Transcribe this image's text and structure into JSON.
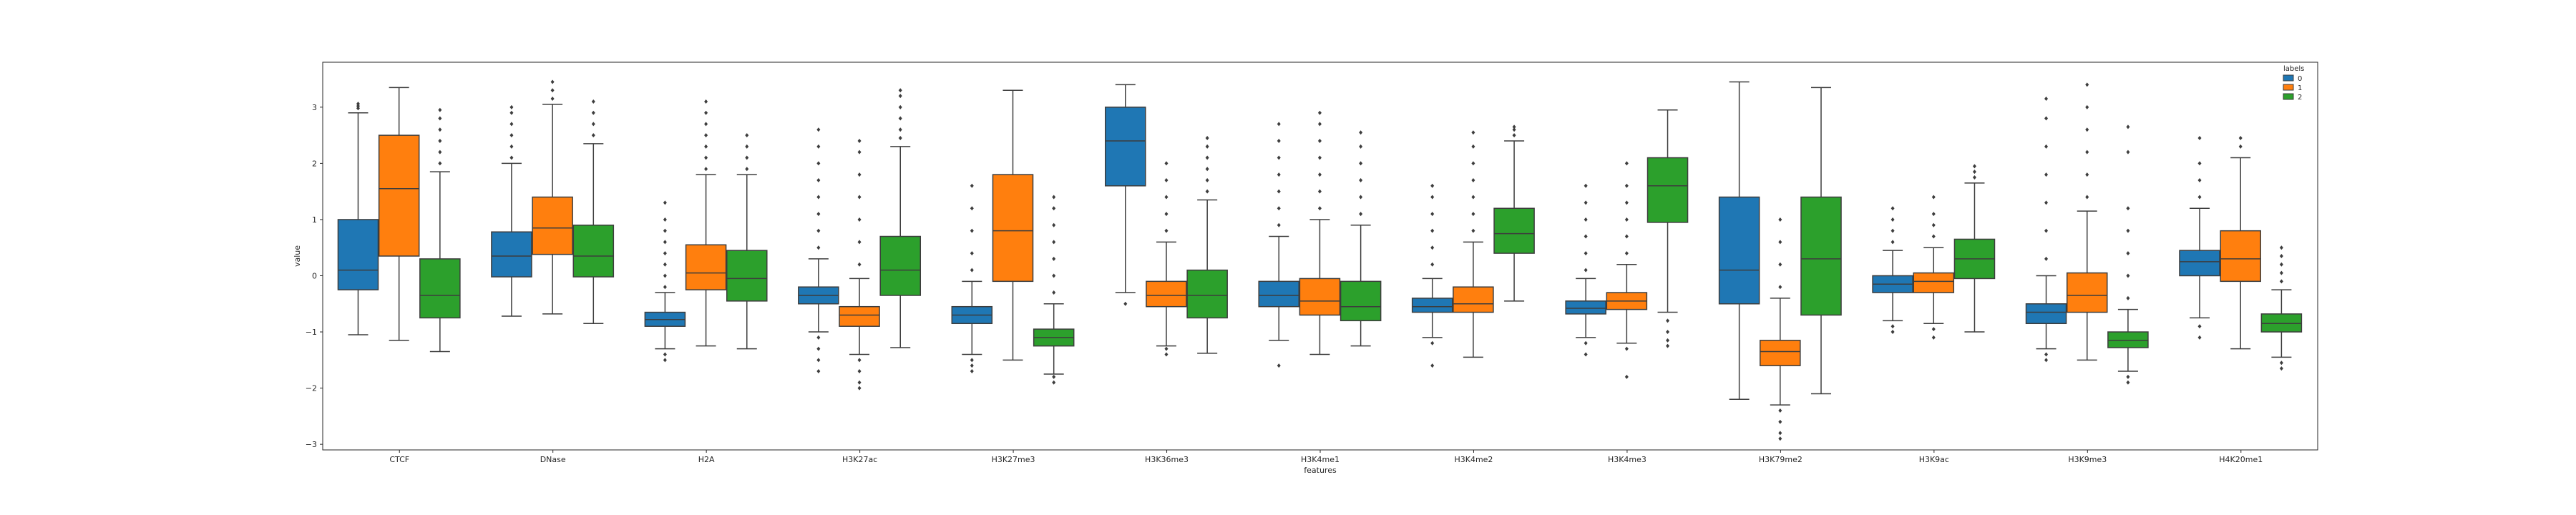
{
  "chart_data": {
    "type": "boxplot",
    "title": "",
    "xlabel": "features",
    "ylabel": "value",
    "ylim": [
      -3.1,
      3.8
    ],
    "yticks": [
      -3,
      -2,
      -1,
      0,
      1,
      2,
      3
    ],
    "grid": false,
    "legend": {
      "title": "labels",
      "position": "top-right",
      "entries": [
        "0",
        "1",
        "2"
      ]
    },
    "categories": [
      "CTCF",
      "DNase",
      "H2A",
      "H3K27ac",
      "H3K27me3",
      "H3K36me3",
      "H3K4me1",
      "H3K4me2",
      "H3K4me3",
      "H3K79me2",
      "H3K9ac",
      "H3K9me3",
      "H4K20me1"
    ],
    "series": [
      {
        "name": "0",
        "color": "#1f77b4",
        "boxes": [
          {
            "whislo": -1.05,
            "q1": -0.25,
            "med": 0.1,
            "q3": 1.0,
            "whishi": 2.9,
            "fliers_low": [],
            "fliers_high": [
              2.98,
              3.02,
              3.06
            ]
          },
          {
            "whislo": -0.72,
            "q1": -0.02,
            "med": 0.35,
            "q3": 0.78,
            "whishi": 2.0,
            "fliers_low": [],
            "fliers_high": [
              2.1,
              2.3,
              2.5,
              2.7,
              2.9,
              3.0
            ]
          },
          {
            "whislo": -1.3,
            "q1": -0.9,
            "med": -0.78,
            "q3": -0.65,
            "whishi": -0.3,
            "fliers_low": [
              -1.4,
              -1.5
            ],
            "fliers_high": [
              -0.2,
              0.0,
              0.2,
              0.4,
              0.6,
              0.8,
              1.0,
              1.3
            ]
          },
          {
            "whislo": -1.0,
            "q1": -0.5,
            "med": -0.35,
            "q3": -0.2,
            "whishi": 0.3,
            "fliers_low": [
              -1.1,
              -1.3,
              -1.5,
              -1.7
            ],
            "fliers_high": [
              0.5,
              0.8,
              1.1,
              1.4,
              1.7,
              2.0,
              2.3,
              2.6
            ]
          },
          {
            "whislo": -1.4,
            "q1": -0.85,
            "med": -0.7,
            "q3": -0.55,
            "whishi": -0.1,
            "fliers_low": [
              -1.5,
              -1.6,
              -1.7
            ],
            "fliers_high": [
              0.1,
              0.4,
              0.8,
              1.2,
              1.6
            ]
          },
          {
            "whislo": -0.3,
            "q1": 1.6,
            "med": 2.4,
            "q3": 3.0,
            "whishi": 3.4,
            "fliers_low": [
              -0.5
            ],
            "fliers_high": []
          },
          {
            "whislo": -1.15,
            "q1": -0.55,
            "med": -0.35,
            "q3": -0.1,
            "whishi": 0.7,
            "fliers_low": [
              -1.6
            ],
            "fliers_high": [
              0.9,
              1.2,
              1.5,
              1.8,
              2.1,
              2.4,
              2.7
            ]
          },
          {
            "whislo": -1.1,
            "q1": -0.65,
            "med": -0.55,
            "q3": -0.4,
            "whishi": -0.05,
            "fliers_low": [
              -1.2,
              -1.6
            ],
            "fliers_high": [
              0.2,
              0.5,
              0.8,
              1.1,
              1.4,
              1.6
            ]
          },
          {
            "whislo": -1.1,
            "q1": -0.68,
            "med": -0.58,
            "q3": -0.45,
            "whishi": -0.05,
            "fliers_low": [
              -1.2,
              -1.4
            ],
            "fliers_high": [
              0.1,
              0.4,
              0.7,
              1.0,
              1.3,
              1.6
            ]
          },
          {
            "whislo": -2.2,
            "q1": -0.5,
            "med": 0.1,
            "q3": 1.4,
            "whishi": 3.45,
            "fliers_low": [],
            "fliers_high": []
          },
          {
            "whislo": -0.8,
            "q1": -0.3,
            "med": -0.15,
            "q3": 0.0,
            "whishi": 0.45,
            "fliers_low": [
              -0.9,
              -1.0
            ],
            "fliers_high": [
              0.6,
              0.8,
              1.0,
              1.2
            ]
          },
          {
            "whislo": -1.3,
            "q1": -0.85,
            "med": -0.65,
            "q3": -0.5,
            "whishi": 0.0,
            "fliers_low": [
              -1.4,
              -1.5
            ],
            "fliers_high": [
              0.3,
              0.8,
              1.3,
              1.8,
              2.3,
              2.8,
              3.15
            ]
          },
          {
            "whislo": -0.75,
            "q1": 0.0,
            "med": 0.25,
            "q3": 0.45,
            "whishi": 1.2,
            "fliers_low": [
              -0.9,
              -1.1
            ],
            "fliers_high": [
              1.4,
              1.7,
              2.0,
              2.45
            ]
          }
        ]
      },
      {
        "name": "1",
        "color": "#ff7f0e",
        "boxes": [
          {
            "whislo": -1.15,
            "q1": 0.35,
            "med": 1.55,
            "q3": 2.5,
            "whishi": 3.35,
            "fliers_low": [],
            "fliers_high": []
          },
          {
            "whislo": -0.68,
            "q1": 0.38,
            "med": 0.85,
            "q3": 1.4,
            "whishi": 3.05,
            "fliers_low": [],
            "fliers_high": [
              3.15,
              3.3,
              3.45
            ]
          },
          {
            "whislo": -1.25,
            "q1": -0.25,
            "med": 0.05,
            "q3": 0.55,
            "whishi": 1.8,
            "fliers_low": [],
            "fliers_high": [
              1.9,
              2.1,
              2.3,
              2.5,
              2.7,
              2.9,
              3.1
            ]
          },
          {
            "whislo": -1.4,
            "q1": -0.9,
            "med": -0.7,
            "q3": -0.55,
            "whishi": -0.05,
            "fliers_low": [
              -1.5,
              -1.7,
              -1.9,
              -2.0
            ],
            "fliers_high": [
              0.2,
              0.6,
              1.0,
              1.4,
              1.8,
              2.2,
              2.4
            ]
          },
          {
            "whislo": -1.5,
            "q1": -0.1,
            "med": 0.8,
            "q3": 1.8,
            "whishi": 3.3,
            "fliers_low": [],
            "fliers_high": []
          },
          {
            "whislo": -1.25,
            "q1": -0.55,
            "med": -0.35,
            "q3": -0.1,
            "whishi": 0.6,
            "fliers_low": [
              -1.3,
              -1.4
            ],
            "fliers_high": [
              0.8,
              1.1,
              1.4,
              1.7,
              2.0
            ]
          },
          {
            "whislo": -1.4,
            "q1": -0.7,
            "med": -0.45,
            "q3": -0.05,
            "whishi": 1.0,
            "fliers_low": [],
            "fliers_high": [
              1.2,
              1.5,
              1.8,
              2.1,
              2.4,
              2.7,
              2.9
            ]
          },
          {
            "whislo": -1.45,
            "q1": -0.65,
            "med": -0.5,
            "q3": -0.2,
            "whishi": 0.6,
            "fliers_low": [],
            "fliers_high": [
              0.8,
              1.1,
              1.4,
              1.7,
              2.0,
              2.3,
              2.55
            ]
          },
          {
            "whislo": -1.2,
            "q1": -0.6,
            "med": -0.45,
            "q3": -0.3,
            "whishi": 0.2,
            "fliers_low": [
              -1.3,
              -1.8
            ],
            "fliers_high": [
              0.4,
              0.7,
              1.0,
              1.3,
              1.6,
              2.0
            ]
          },
          {
            "whislo": -2.3,
            "q1": -1.6,
            "med": -1.35,
            "q3": -1.15,
            "whishi": -0.4,
            "fliers_low": [
              -2.4,
              -2.6,
              -2.8,
              -2.9
            ],
            "fliers_high": [
              -0.2,
              0.2,
              0.6,
              1.0
            ]
          },
          {
            "whislo": -0.85,
            "q1": -0.3,
            "med": -0.1,
            "q3": 0.05,
            "whishi": 0.5,
            "fliers_low": [
              -0.95,
              -1.1
            ],
            "fliers_high": [
              0.7,
              0.9,
              1.1,
              1.4
            ]
          },
          {
            "whislo": -1.5,
            "q1": -0.65,
            "med": -0.35,
            "q3": 0.05,
            "whishi": 1.15,
            "fliers_low": [],
            "fliers_high": [
              1.4,
              1.8,
              2.2,
              2.6,
              3.0,
              3.4
            ]
          },
          {
            "whislo": -1.3,
            "q1": -0.1,
            "med": 0.3,
            "q3": 0.8,
            "whishi": 2.1,
            "fliers_low": [],
            "fliers_high": [
              2.3,
              2.45
            ]
          }
        ]
      },
      {
        "name": "2",
        "color": "#2ca02c",
        "boxes": [
          {
            "whislo": -1.35,
            "q1": -0.75,
            "med": -0.35,
            "q3": 0.3,
            "whishi": 1.85,
            "fliers_low": [],
            "fliers_high": [
              2.0,
              2.2,
              2.4,
              2.6,
              2.8,
              2.95
            ]
          },
          {
            "whislo": -0.85,
            "q1": -0.02,
            "med": 0.35,
            "q3": 0.9,
            "whishi": 2.35,
            "fliers_low": [],
            "fliers_high": [
              2.5,
              2.7,
              2.9,
              3.1
            ]
          },
          {
            "whislo": -1.3,
            "q1": -0.45,
            "med": -0.05,
            "q3": 0.45,
            "whishi": 1.8,
            "fliers_low": [],
            "fliers_high": [
              1.9,
              2.1,
              2.3,
              2.5
            ]
          },
          {
            "whislo": -1.28,
            "q1": -0.35,
            "med": 0.1,
            "q3": 0.7,
            "whishi": 2.3,
            "fliers_low": [],
            "fliers_high": [
              2.45,
              2.6,
              2.8,
              3.0,
              3.2,
              3.3
            ]
          },
          {
            "whislo": -1.75,
            "q1": -1.25,
            "med": -1.1,
            "q3": -0.95,
            "whishi": -0.5,
            "fliers_low": [
              -1.8,
              -1.9
            ],
            "fliers_high": [
              -0.3,
              0.0,
              0.3,
              0.6,
              0.9,
              1.2,
              1.4
            ]
          },
          {
            "whislo": -1.38,
            "q1": -0.75,
            "med": -0.35,
            "q3": 0.1,
            "whishi": 1.35,
            "fliers_low": [],
            "fliers_high": [
              1.5,
              1.7,
              1.9,
              2.1,
              2.3,
              2.45
            ]
          },
          {
            "whislo": -1.25,
            "q1": -0.8,
            "med": -0.55,
            "q3": -0.1,
            "whishi": 0.9,
            "fliers_low": [],
            "fliers_high": [
              1.1,
              1.4,
              1.7,
              2.0,
              2.3,
              2.55
            ]
          },
          {
            "whislo": -0.45,
            "q1": 0.4,
            "med": 0.75,
            "q3": 1.2,
            "whishi": 2.4,
            "fliers_low": [],
            "fliers_high": [
              2.5,
              2.6,
              2.65
            ]
          },
          {
            "whislo": -0.65,
            "q1": 0.95,
            "med": 1.6,
            "q3": 2.1,
            "whishi": 2.95,
            "fliers_low": [
              -0.8,
              -1.0,
              -1.15,
              -1.25
            ],
            "fliers_high": []
          },
          {
            "whislo": -2.1,
            "q1": -0.7,
            "med": 0.3,
            "q3": 1.4,
            "whishi": 3.35,
            "fliers_low": [],
            "fliers_high": []
          },
          {
            "whislo": -1.0,
            "q1": -0.05,
            "med": 0.3,
            "q3": 0.65,
            "whishi": 1.65,
            "fliers_low": [],
            "fliers_high": [
              1.75,
              1.85,
              1.95
            ]
          },
          {
            "whislo": -1.7,
            "q1": -1.28,
            "med": -1.15,
            "q3": -1.0,
            "whishi": -0.6,
            "fliers_low": [
              -1.8,
              -1.9
            ],
            "fliers_high": [
              -0.4,
              0.0,
              0.4,
              0.8,
              1.2,
              2.2,
              2.65
            ]
          },
          {
            "whislo": -1.45,
            "q1": -1.0,
            "med": -0.85,
            "q3": -0.68,
            "whishi": -0.25,
            "fliers_low": [
              -1.55,
              -1.65
            ],
            "fliers_high": [
              -0.1,
              0.05,
              0.2,
              0.35,
              0.5
            ]
          }
        ]
      }
    ]
  }
}
